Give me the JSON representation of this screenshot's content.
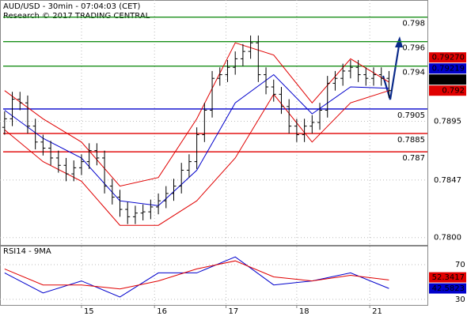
{
  "chart_data": [
    {
      "type": "ohlc",
      "title": "AUD/USD - 30min - 07:04:03 (CET)",
      "subtitle": "Research © 2017 TRADING CENTRAL",
      "x": [
        0,
        1,
        2,
        3,
        4,
        5,
        6,
        7,
        8,
        9,
        10,
        11,
        12,
        13,
        14,
        15,
        16,
        17,
        18,
        19,
        20,
        21,
        22,
        23,
        24,
        25,
        26,
        27,
        28,
        29,
        30,
        31,
        32,
        33,
        34,
        35,
        36,
        37,
        38,
        39,
        40,
        41,
        42,
        43,
        44,
        45,
        46,
        47,
        48,
        49,
        50
      ],
      "open": [
        0.789,
        0.7897,
        0.7913,
        0.791,
        0.7891,
        0.7878,
        0.7873,
        0.7865,
        0.7859,
        0.7852,
        0.7857,
        0.7862,
        0.7871,
        0.7865,
        0.7842,
        0.7833,
        0.7823,
        0.7817,
        0.782,
        0.7821,
        0.7825,
        0.783,
        0.7836,
        0.7842,
        0.7855,
        0.7862,
        0.7884,
        0.7904,
        0.793,
        0.7933,
        0.7939,
        0.7946,
        0.7952,
        0.7959,
        0.7933,
        0.7923,
        0.7917,
        0.7907,
        0.7891,
        0.7884,
        0.7891,
        0.7894,
        0.7904,
        0.7926,
        0.793,
        0.7936,
        0.7939,
        0.7933,
        0.793,
        0.7933,
        0.793
      ],
      "high": [
        0.7903,
        0.7919,
        0.7919,
        0.7916,
        0.7897,
        0.7884,
        0.7879,
        0.7871,
        0.7865,
        0.7863,
        0.7868,
        0.7877,
        0.7877,
        0.7871,
        0.7848,
        0.7839,
        0.7829,
        0.7826,
        0.7827,
        0.7831,
        0.7836,
        0.7842,
        0.7848,
        0.7861,
        0.7868,
        0.789,
        0.791,
        0.7936,
        0.7939,
        0.7945,
        0.7952,
        0.7958,
        0.7965,
        0.7965,
        0.7939,
        0.7929,
        0.7923,
        0.7913,
        0.7897,
        0.7897,
        0.79,
        0.791,
        0.7932,
        0.7936,
        0.7942,
        0.7945,
        0.7945,
        0.7939,
        0.7939,
        0.7939,
        0.7936
      ],
      "low": [
        0.7884,
        0.7891,
        0.7904,
        0.7885,
        0.7872,
        0.7867,
        0.7859,
        0.7853,
        0.7846,
        0.7846,
        0.7851,
        0.7856,
        0.7859,
        0.7836,
        0.7827,
        0.7817,
        0.7811,
        0.7811,
        0.7814,
        0.7815,
        0.7819,
        0.7824,
        0.783,
        0.7836,
        0.7849,
        0.7856,
        0.7878,
        0.7898,
        0.7924,
        0.7927,
        0.7933,
        0.794,
        0.7946,
        0.7927,
        0.7917,
        0.7911,
        0.7901,
        0.7885,
        0.7878,
        0.7878,
        0.7885,
        0.7888,
        0.7898,
        0.792,
        0.7924,
        0.793,
        0.7927,
        0.7924,
        0.7924,
        0.7924,
        0.7914
      ],
      "close": [
        0.7897,
        0.7913,
        0.791,
        0.7891,
        0.7878,
        0.7873,
        0.7865,
        0.7859,
        0.7852,
        0.7857,
        0.7862,
        0.7871,
        0.7865,
        0.7842,
        0.7833,
        0.7823,
        0.7817,
        0.782,
        0.7821,
        0.7825,
        0.783,
        0.7836,
        0.7842,
        0.7855,
        0.7862,
        0.7884,
        0.7904,
        0.793,
        0.7933,
        0.7939,
        0.7946,
        0.7952,
        0.7959,
        0.7933,
        0.7923,
        0.7917,
        0.7907,
        0.7891,
        0.7884,
        0.7891,
        0.7894,
        0.7904,
        0.7926,
        0.793,
        0.7936,
        0.7939,
        0.7933,
        0.793,
        0.7933,
        0.793,
        0.792
      ],
      "color": "#000000",
      "series": [
        {
          "color": "#e00000",
          "x": [
            0,
            5,
            10,
            15,
            20,
            25,
            30,
            35,
            40,
            45,
            50
          ],
          "values": [
            0.792,
            0.7897,
            0.7878,
            0.7842,
            0.7849,
            0.7897,
            0.7959,
            0.7949,
            0.791,
            0.7946,
            0.7927
          ],
          "value_labels": [
            null,
            null,
            null,
            null,
            null,
            null,
            null,
            null,
            null,
            null,
            "0.79270"
          ]
        },
        {
          "color": "#0000cc",
          "x": [
            0,
            5,
            10,
            15,
            20,
            25,
            30,
            35,
            40,
            45,
            50
          ],
          "values": [
            0.7904,
            0.7881,
            0.7865,
            0.783,
            0.7826,
            0.7855,
            0.791,
            0.7933,
            0.7901,
            0.7923,
            0.79219
          ]
        },
        {
          "color": "#e00000",
          "x": [
            0,
            5,
            10,
            15,
            20,
            25,
            30,
            35,
            40,
            45,
            50
          ],
          "values": [
            0.7888,
            0.7862,
            0.7846,
            0.781,
            0.781,
            0.783,
            0.7865,
            0.7917,
            0.7878,
            0.791,
            0.792
          ]
        }
      ],
      "levels": [
        {
          "value": 0.798,
          "color": "#1a8f1a"
        },
        {
          "value": 0.796,
          "color": "#1a8f1a"
        },
        {
          "value": 0.794,
          "color": "#1a8f1a"
        },
        {
          "value": 0.7905,
          "color": "#0000cc"
        },
        {
          "value": 0.7885,
          "color": "#e00000"
        },
        {
          "value": 0.787,
          "color": "#e00000"
        }
      ],
      "xlim": [
        -0.6,
        55
      ],
      "xticks": [
        {
          "value": 10,
          "label": "15"
        },
        {
          "value": 19.5,
          "label": "16"
        },
        {
          "value": 28.8,
          "label": "17"
        },
        {
          "value": 38,
          "label": "18"
        },
        {
          "value": 47.5,
          "label": "21"
        }
      ],
      "ylim": [
        0.7794,
        0.7994
      ],
      "yticks": [
        0.7895,
        0.7847,
        {
          "value": 0.78,
          "label": "0.7800"
        }
      ],
      "grid": true
    },
    {
      "type": "line",
      "title": "RSI14 - 9MA",
      "series": [
        {
          "color": "#0000cc",
          "x": [
            0,
            5,
            10,
            15,
            20,
            25,
            30,
            35,
            40,
            45,
            50
          ],
          "values": [
            60.5,
            37.4,
            51.2,
            32.7,
            60.5,
            60.5,
            79,
            46.6,
            51.2,
            60.5,
            42.5823
          ]
        },
        {
          "color": "#e00000",
          "x": [
            0,
            5,
            10,
            15,
            20,
            25,
            30,
            35,
            40,
            45,
            50
          ],
          "values": [
            65.1,
            46.6,
            46.6,
            42,
            51.2,
            65.1,
            74.4,
            55.9,
            51.2,
            57.7,
            52.3417
          ]
        }
      ],
      "xlim": [
        -0.6,
        55
      ],
      "ylim": [
        23.5,
        91
      ],
      "yticks": [
        30,
        70
      ],
      "grid": true
    }
  ]
}
